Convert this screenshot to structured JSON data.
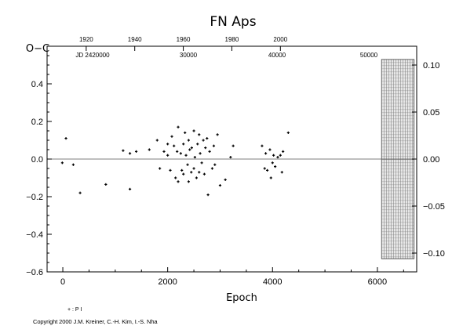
{
  "chart_data": {
    "type": "scatter",
    "title": "FN Aps",
    "xlabel": "Epoch",
    "ylabel": "O−C",
    "xlim": [
      -300,
      6750
    ],
    "ylim": [
      -0.6,
      0.6
    ],
    "x_ticks": [
      "0",
      "2000",
      "4000",
      "6000"
    ],
    "y_ticks_left": [
      "−0.6",
      "−0.4",
      "−0.2",
      "0.0",
      "0.2",
      "0.4"
    ],
    "top_axis": {
      "year_ticks": [
        "1920",
        "1940",
        "1960",
        "1980",
        "2000"
      ],
      "jd_ticks": [
        "JD 2420000",
        "30000",
        "40000",
        "50000"
      ]
    },
    "right_axis": {
      "ticks": [
        "−0.10",
        "−0.05",
        "0.00",
        "0.05",
        "0.10"
      ]
    },
    "shaded_region": {
      "x_from": 6080,
      "x_to": 6700,
      "y_from": -0.53,
      "y_to": 0.53
    },
    "series": [
      {
        "name": "",
        "marker": "plus",
        "points": [
          [
            -10,
            -0.02
          ],
          [
            60,
            0.11
          ],
          [
            200,
            -0.03
          ],
          [
            330,
            -0.18
          ],
          [
            820,
            -0.135
          ],
          [
            1150,
            0.045
          ],
          [
            1280,
            0.03
          ],
          [
            1280,
            -0.16
          ],
          [
            1400,
            0.04
          ],
          [
            1650,
            0.05
          ],
          [
            1800,
            0.1
          ],
          [
            1850,
            -0.05
          ],
          [
            1930,
            0.04
          ],
          [
            2000,
            0.08
          ],
          [
            2000,
            0.02
          ],
          [
            2050,
            -0.06
          ],
          [
            2080,
            0.12
          ],
          [
            2120,
            0.07
          ],
          [
            2150,
            -0.1
          ],
          [
            2180,
            0.04
          ],
          [
            2200,
            -0.12
          ],
          [
            2200,
            0.17
          ],
          [
            2250,
            0.03
          ],
          [
            2270,
            -0.06
          ],
          [
            2300,
            0.08
          ],
          [
            2300,
            -0.08
          ],
          [
            2330,
            0.14
          ],
          [
            2350,
            0.02
          ],
          [
            2380,
            -0.03
          ],
          [
            2400,
            0.1
          ],
          [
            2400,
            -0.12
          ],
          [
            2420,
            0.05
          ],
          [
            2450,
            -0.07
          ],
          [
            2460,
            0.06
          ],
          [
            2500,
            0.15
          ],
          [
            2500,
            -0.05
          ],
          [
            2520,
            0.01
          ],
          [
            2550,
            -0.1
          ],
          [
            2570,
            0.08
          ],
          [
            2600,
            0.13
          ],
          [
            2600,
            -0.07
          ],
          [
            2620,
            0.03
          ],
          [
            2650,
            -0.02
          ],
          [
            2680,
            0.1
          ],
          [
            2700,
            -0.08
          ],
          [
            2720,
            0.06
          ],
          [
            2750,
            0.11
          ],
          [
            2770,
            -0.19
          ],
          [
            2800,
            0.04
          ],
          [
            2850,
            -0.05
          ],
          [
            2880,
            0.07
          ],
          [
            2900,
            -0.03
          ],
          [
            2950,
            0.13
          ],
          [
            3000,
            -0.14
          ],
          [
            3100,
            -0.11
          ],
          [
            3200,
            0.01
          ],
          [
            3250,
            0.07
          ],
          [
            3800,
            0.07
          ],
          [
            3850,
            -0.05
          ],
          [
            3870,
            0.03
          ],
          [
            3900,
            -0.06
          ],
          [
            3950,
            0.05
          ],
          [
            3970,
            -0.1
          ],
          [
            4000,
            -0.02
          ],
          [
            4020,
            0.02
          ],
          [
            4050,
            -0.04
          ],
          [
            4100,
            0.01
          ],
          [
            4150,
            0.02
          ],
          [
            4180,
            -0.07
          ],
          [
            4200,
            0.04
          ],
          [
            4300,
            0.14
          ]
        ]
      }
    ],
    "legend": [
      "+ : P I"
    ]
  },
  "copyright": "Copyright 2000 J.M. Kreiner, C.-H. Kim, I.-S. Nha"
}
